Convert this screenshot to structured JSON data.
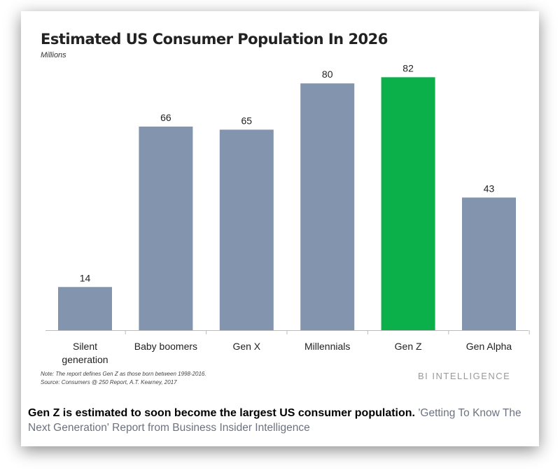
{
  "chart_data": {
    "type": "bar",
    "title": "Estimated US Consumer Population In 2026",
    "subtitle": "Millions",
    "categories": [
      "Silent generation",
      "Baby boomers",
      "Gen X",
      "Millennials",
      "Gen Z",
      "Gen Alpha"
    ],
    "category_lines": [
      [
        "Silent",
        "generation"
      ],
      [
        "Baby boomers"
      ],
      [
        "Gen X"
      ],
      [
        "Millennials"
      ],
      [
        "Gen Z"
      ],
      [
        "Gen Alpha"
      ]
    ],
    "values": [
      14,
      66,
      65,
      80,
      82,
      43
    ],
    "highlight": "Gen Z",
    "colors": {
      "default": "#8395ae",
      "highlight": "#0bb04b"
    },
    "ylim": [
      0,
      90
    ],
    "grid": false,
    "notes": [
      "Note: The report defines Gen Z as those born between 1998-2016.",
      "Source: Consumers @ 250 Report, A.T. Kearney, 2017"
    ],
    "brand": "BI INTELLIGENCE"
  },
  "caption": {
    "bold": "Gen Z is estimated to soon become the largest US consumer population.",
    "source": "'Getting To Know The Next Generation' Report from Business Insider Intelligence"
  }
}
